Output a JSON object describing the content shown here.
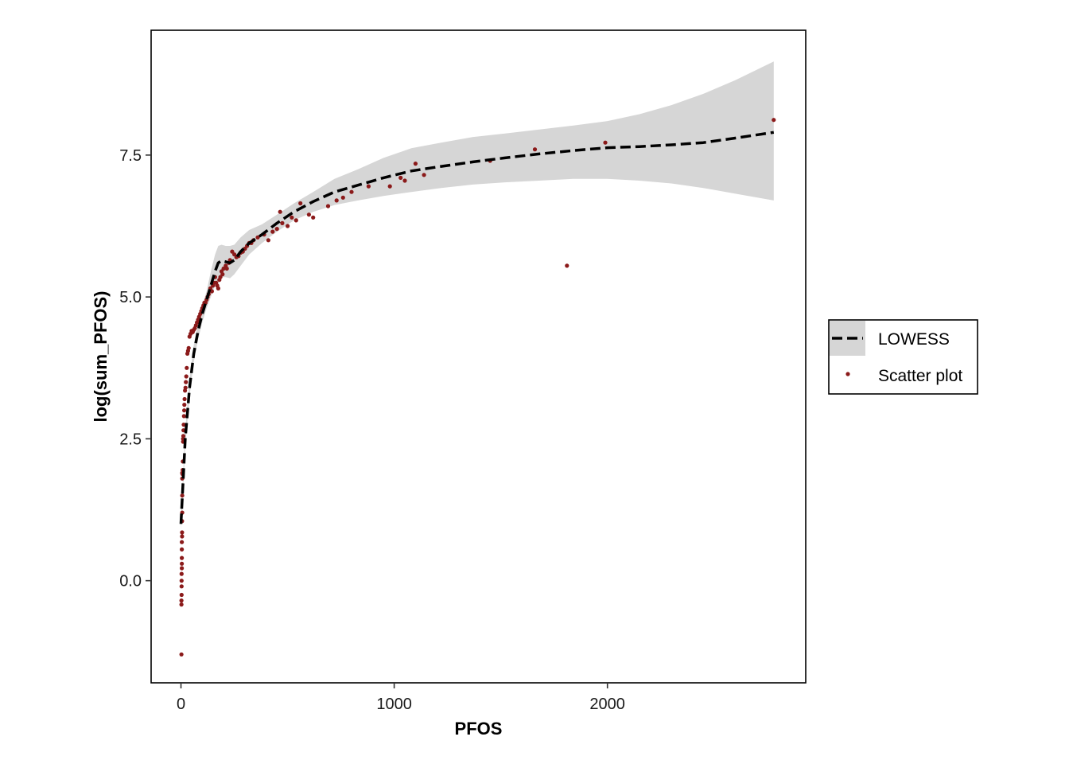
{
  "chart_data": {
    "type": "scatter",
    "xlabel": "PFOS",
    "ylabel": "log(sum_PFOS)",
    "xlim": [
      -140,
      2930
    ],
    "ylim": [
      -1.8,
      9.7
    ],
    "x_ticks": [
      0,
      1000,
      2000
    ],
    "x_tick_labels": [
      "0",
      "1000",
      "2000"
    ],
    "y_ticks": [
      0,
      2.5,
      5,
      7.5
    ],
    "y_tick_labels": [
      "0.0",
      "2.5",
      "5.0",
      "7.5"
    ],
    "grid": false,
    "legend_position": "right",
    "colors": {
      "points": "#8b1a1a",
      "smooth_line": "#000000",
      "band": "#d6d6d6",
      "frame": "#000000"
    },
    "series": [
      {
        "name": "Scatter plot",
        "kind": "points",
        "x": [
          2,
          2,
          2,
          3,
          3,
          3,
          3,
          4,
          4,
          4,
          4,
          4,
          5,
          5,
          5,
          6,
          6,
          6,
          6,
          7,
          8,
          9,
          10,
          10,
          11,
          12,
          13,
          14,
          15,
          16,
          17,
          19,
          21,
          23,
          25,
          27,
          30,
          33,
          36,
          40,
          45,
          50,
          55,
          60,
          65,
          70,
          75,
          80,
          85,
          90,
          95,
          100,
          105,
          110,
          115,
          120,
          125,
          130,
          138,
          145,
          150,
          155,
          160,
          165,
          170,
          175,
          180,
          185,
          190,
          195,
          200,
          210,
          215,
          225,
          230,
          240,
          250,
          260,
          270,
          280,
          290,
          300,
          310,
          320,
          330,
          340,
          360,
          390,
          410,
          430,
          450,
          465,
          475,
          500,
          520,
          540,
          560,
          600,
          620,
          690,
          730,
          760,
          800,
          880,
          980,
          1030,
          1050,
          1100,
          1140,
          1450,
          1660,
          1810,
          1990,
          2780
        ],
        "y": [
          -1.3,
          -0.42,
          -0.35,
          -0.25,
          -0.1,
          0.0,
          0.12,
          0.22,
          0.3,
          0.4,
          0.55,
          0.68,
          0.78,
          0.85,
          1.05,
          1.2,
          1.5,
          1.8,
          1.9,
          1.88,
          1.95,
          2.1,
          2.45,
          2.5,
          2.55,
          2.65,
          2.75,
          2.9,
          3.0,
          3.1,
          3.2,
          3.35,
          3.4,
          3.5,
          3.6,
          3.75,
          4.0,
          4.05,
          4.1,
          4.3,
          4.35,
          4.4,
          4.38,
          4.42,
          4.45,
          4.5,
          4.55,
          4.6,
          4.65,
          4.7,
          4.75,
          4.8,
          4.85,
          4.9,
          4.9,
          4.95,
          5.0,
          5.05,
          5.15,
          5.1,
          5.2,
          5.25,
          5.35,
          5.25,
          5.2,
          5.15,
          5.3,
          5.35,
          5.45,
          5.4,
          5.5,
          5.55,
          5.5,
          5.6,
          5.65,
          5.8,
          5.75,
          5.7,
          5.72,
          5.78,
          5.8,
          5.85,
          5.9,
          5.95,
          5.95,
          6.0,
          6.05,
          6.1,
          6.0,
          6.15,
          6.2,
          6.5,
          6.3,
          6.25,
          6.4,
          6.35,
          6.65,
          6.45,
          6.4,
          6.6,
          6.7,
          6.75,
          6.85,
          6.95,
          6.95,
          7.1,
          7.05,
          7.35,
          7.15,
          7.4,
          7.6,
          5.55,
          7.72,
          8.12
        ]
      },
      {
        "name": "LOWESS",
        "kind": "smooth",
        "x": [
          0,
          20,
          40,
          60,
          80,
          100,
          120,
          140,
          160,
          175,
          190,
          210,
          230,
          250,
          280,
          320,
          380,
          450,
          530,
          620,
          720,
          830,
          950,
          1080,
          1220,
          1370,
          1520,
          1680,
          1840,
          2000,
          2150,
          2300,
          2450,
          2600,
          2780
        ],
        "y": [
          1.0,
          2.5,
          3.4,
          4.0,
          4.4,
          4.7,
          4.95,
          5.2,
          5.45,
          5.6,
          5.64,
          5.62,
          5.6,
          5.65,
          5.8,
          5.95,
          6.1,
          6.3,
          6.5,
          6.68,
          6.85,
          6.97,
          7.1,
          7.22,
          7.3,
          7.38,
          7.45,
          7.52,
          7.58,
          7.63,
          7.65,
          7.68,
          7.72,
          7.8,
          7.9
        ],
        "band_lower": [
          0.9,
          2.35,
          3.25,
          3.85,
          4.25,
          4.55,
          4.8,
          5.0,
          5.2,
          5.3,
          5.35,
          5.35,
          5.33,
          5.4,
          5.55,
          5.75,
          5.95,
          6.15,
          6.35,
          6.5,
          6.62,
          6.7,
          6.78,
          6.85,
          6.92,
          6.98,
          7.02,
          7.05,
          7.08,
          7.08,
          7.05,
          7.0,
          6.92,
          6.82,
          6.7
        ],
        "band_upper": [
          1.15,
          2.65,
          3.55,
          4.15,
          4.55,
          4.85,
          5.1,
          5.45,
          5.75,
          5.9,
          5.92,
          5.9,
          5.9,
          5.92,
          6.05,
          6.18,
          6.28,
          6.45,
          6.65,
          6.85,
          7.08,
          7.25,
          7.45,
          7.62,
          7.72,
          7.82,
          7.88,
          7.95,
          8.02,
          8.1,
          8.22,
          8.38,
          8.58,
          8.82,
          9.15
        ]
      }
    ]
  }
}
